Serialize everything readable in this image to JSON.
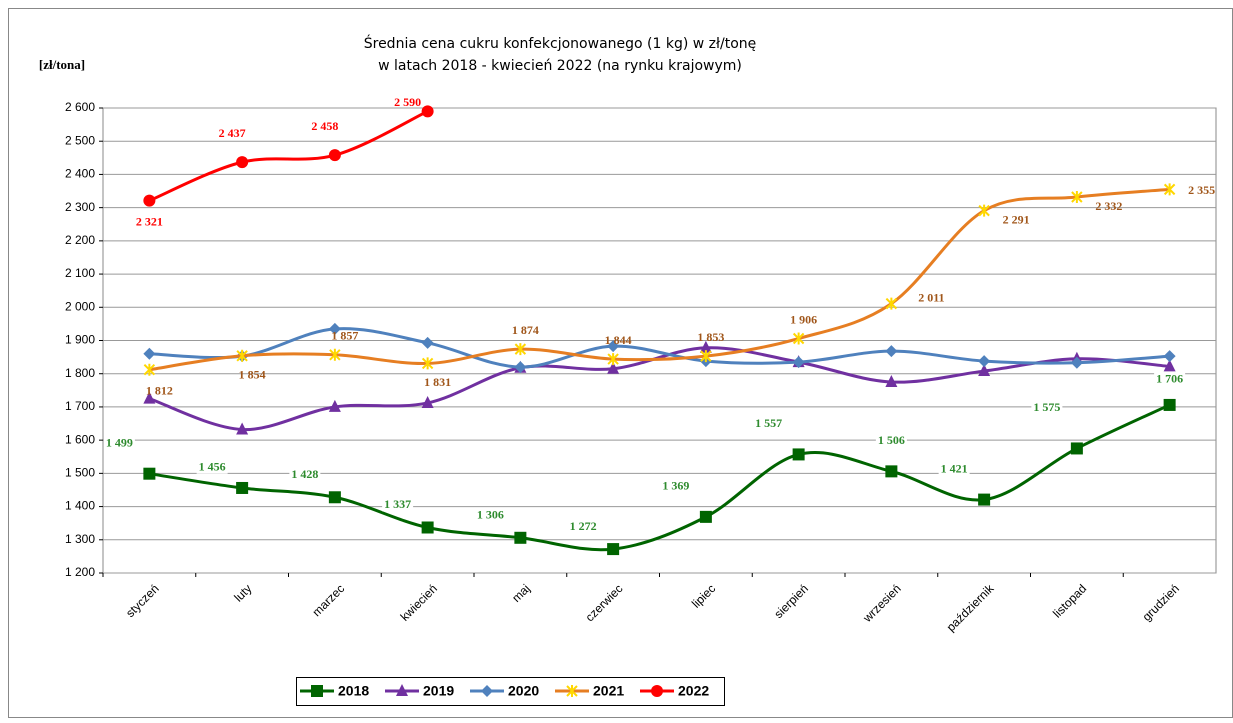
{
  "chart_data": {
    "type": "line",
    "title": "Średnia cena cukru konfekcjonowanego (1 kg) w zł/tonę",
    "subtitle": "w latach 2018 - kwiecień 2022 (na rynku krajowym)",
    "y_label": "[zł/tona]",
    "categories": [
      "styczeń",
      "luty",
      "marzec",
      "kwiecień",
      "maj",
      "czerwiec",
      "lipiec",
      "sierpień",
      "wrzesień",
      "październik",
      "listopad",
      "grudzień"
    ],
    "ylim": [
      1200,
      2600
    ],
    "yticks": [
      {
        "value": 1200,
        "label": "1 200"
      },
      {
        "value": 1300,
        "label": "1 300"
      },
      {
        "value": 1400,
        "label": "1 400"
      },
      {
        "value": 1500,
        "label": "1 500"
      },
      {
        "value": 1600,
        "label": "1 600"
      },
      {
        "value": 1700,
        "label": "1 700"
      },
      {
        "value": 1800,
        "label": "1 800"
      },
      {
        "value": 1900,
        "label": "1 900"
      },
      {
        "value": 2000,
        "label": "2 000"
      },
      {
        "value": 2100,
        "label": "2 100"
      },
      {
        "value": 2200,
        "label": "2 200"
      },
      {
        "value": 2300,
        "label": "2 300"
      },
      {
        "value": 2400,
        "label": "2 400"
      },
      {
        "value": 2500,
        "label": "2 500"
      },
      {
        "value": 2600,
        "label": "2 600"
      }
    ],
    "grid": true,
    "legend": "bottom",
    "series": [
      {
        "name": "2018",
        "color": "#006400",
        "marker": "square",
        "values": [
          1499,
          1456,
          1428,
          1337,
          1306,
          1272,
          1369,
          1557,
          1506,
          1421,
          1575,
          1706
        ],
        "value_labels": [
          "1 499",
          "1 456",
          "1 428",
          "1 337",
          "1 306",
          "1 272",
          "1 369",
          "1 557",
          "1 506",
          "1 421",
          "1 575",
          "1 706"
        ]
      },
      {
        "name": "2019",
        "color": "#7030a0",
        "marker": "triangle",
        "values": [
          1725,
          1632,
          1700,
          1712,
          1818,
          1815,
          1878,
          1835,
          1775,
          1808,
          1845,
          1822
        ]
      },
      {
        "name": "2020",
        "color": "#4f81bd",
        "marker": "diamond",
        "values": [
          1860,
          1853,
          1935,
          1893,
          1820,
          1883,
          1838,
          1835,
          1868,
          1838,
          1833,
          1853
        ]
      },
      {
        "name": "2021",
        "color": "#e67e22",
        "marker": "star",
        "values": [
          1812,
          1854,
          1857,
          1831,
          1874,
          1844,
          1853,
          1906,
          2011,
          2291,
          2332,
          2355
        ],
        "value_labels": [
          "1 812",
          "1 854",
          "1 857",
          "1 831",
          "1 874",
          "1 844",
          "1 853",
          "1 906",
          "2 011",
          "2 291",
          "2 332",
          "2 355"
        ]
      },
      {
        "name": "2022",
        "color": "#ff0000",
        "marker": "circle",
        "values": [
          2321,
          2437,
          2458,
          2590,
          null,
          null,
          null,
          null,
          null,
          null,
          null,
          null
        ],
        "value_labels": [
          "2 321",
          "2 437",
          "2 458",
          "2 590",
          null,
          null,
          null,
          null,
          null,
          null,
          null,
          null
        ]
      }
    ]
  }
}
